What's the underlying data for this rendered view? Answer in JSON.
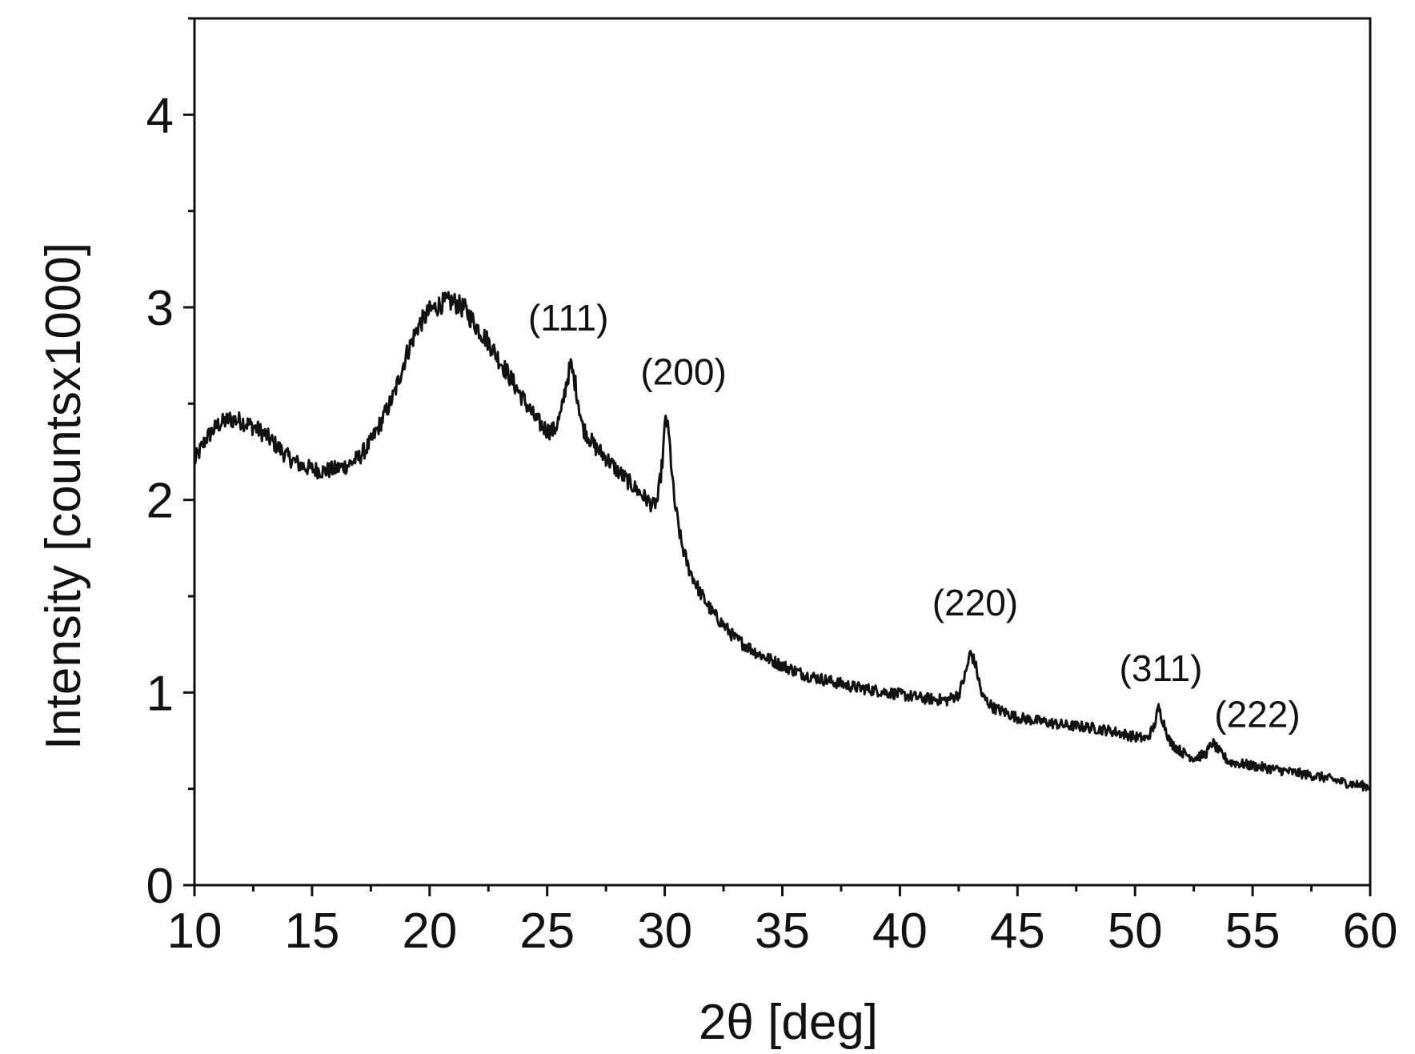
{
  "chart_data": {
    "type": "line",
    "title": "",
    "xlabel": "2θ [deg]",
    "ylabel": "Intensity [countsx1000]",
    "xlim": [
      10,
      60
    ],
    "ylim": [
      0,
      4.5
    ],
    "x_ticks": [
      10,
      15,
      20,
      25,
      30,
      35,
      40,
      45,
      50,
      55,
      60
    ],
    "x_tick_labels": [
      "10",
      "15",
      "20",
      "25",
      "30",
      "35",
      "40",
      "45",
      "50",
      "55",
      "60"
    ],
    "y_ticks": [
      0,
      1,
      2,
      3,
      4
    ],
    "y_tick_labels": [
      "0",
      "1",
      "2",
      "3",
      "4"
    ],
    "grid": false,
    "legend": "none",
    "line_color": "#111111",
    "series": [
      {
        "x": [
          10,
          10.5,
          11,
          11.5,
          12,
          12.5,
          13,
          13.5,
          14,
          14.5,
          15,
          15.5,
          16,
          16.5,
          17,
          17.5,
          18,
          18.5,
          19,
          19.5,
          20,
          20.5,
          21,
          21.5,
          22,
          22.5,
          23,
          23.5,
          24,
          24.5,
          25,
          25.3,
          25.6,
          25.8,
          26,
          26.2,
          26.5,
          27,
          27.5,
          28,
          28.5,
          29,
          29.5,
          29.7,
          29.9,
          30.05,
          30.2,
          30.4,
          30.7,
          31,
          31.5,
          32,
          32.5,
          33,
          34,
          35,
          36,
          37,
          38,
          39,
          40,
          41,
          42,
          42.5,
          42.8,
          43,
          43.2,
          43.5,
          44,
          45,
          46,
          47,
          48,
          49,
          50,
          50.5,
          50.8,
          51,
          51.2,
          51.5,
          52,
          52.5,
          53,
          53.3,
          53.6,
          54,
          55,
          56,
          57,
          58,
          59,
          60
        ],
        "y": [
          2.2,
          2.32,
          2.39,
          2.42,
          2.41,
          2.38,
          2.34,
          2.28,
          2.22,
          2.18,
          2.16,
          2.15,
          2.16,
          2.18,
          2.22,
          2.3,
          2.42,
          2.55,
          2.75,
          2.9,
          2.98,
          3.02,
          3.03,
          2.99,
          2.9,
          2.82,
          2.72,
          2.62,
          2.52,
          2.42,
          2.36,
          2.36,
          2.45,
          2.6,
          2.7,
          2.6,
          2.38,
          2.28,
          2.22,
          2.15,
          2.09,
          2.03,
          1.97,
          2.0,
          2.2,
          2.45,
          2.3,
          2.0,
          1.78,
          1.65,
          1.52,
          1.42,
          1.35,
          1.28,
          1.2,
          1.14,
          1.09,
          1.06,
          1.03,
          1.01,
          0.99,
          0.97,
          0.96,
          0.99,
          1.1,
          1.21,
          1.15,
          0.98,
          0.92,
          0.87,
          0.85,
          0.83,
          0.82,
          0.8,
          0.77,
          0.76,
          0.82,
          0.92,
          0.85,
          0.74,
          0.69,
          0.66,
          0.68,
          0.74,
          0.69,
          0.64,
          0.62,
          0.6,
          0.58,
          0.56,
          0.53,
          0.51
        ]
      }
    ],
    "annotations": [
      {
        "text": "(111)",
        "x": 25.9,
        "y": 2.88
      },
      {
        "text": "(200)",
        "x": 30.8,
        "y": 2.6
      },
      {
        "text": "(220)",
        "x": 43.2,
        "y": 1.4
      },
      {
        "text": "(311)",
        "x": 51.1,
        "y": 1.06
      },
      {
        "text": "(222)",
        "x": 55.2,
        "y": 0.82
      }
    ]
  }
}
